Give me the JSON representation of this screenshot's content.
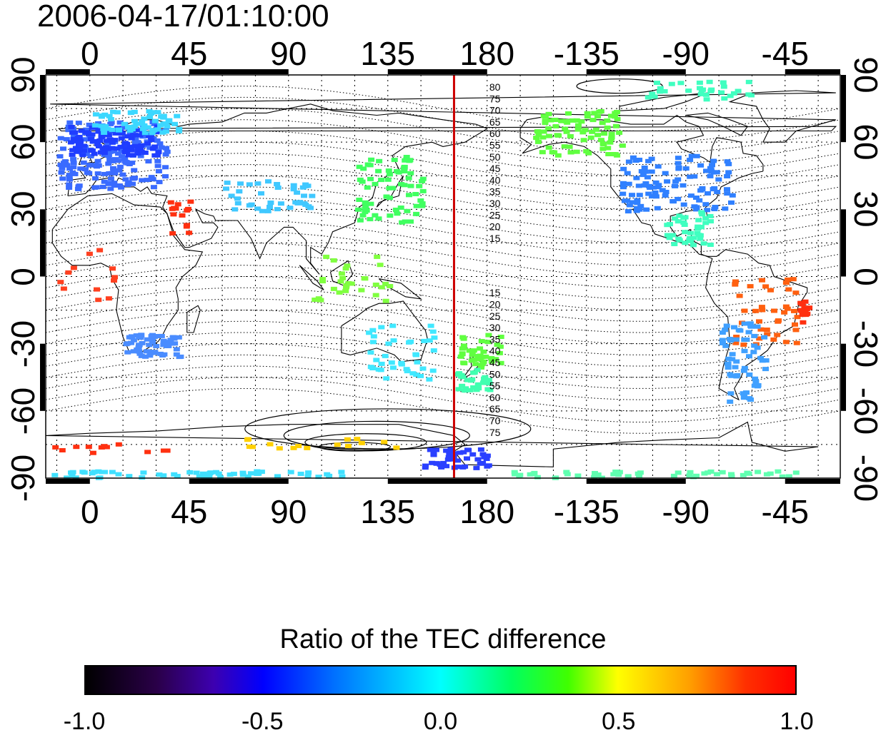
{
  "title": "2006-04-17/01:10:00",
  "map": {
    "projection": "equirectangular",
    "longitude_range": [
      -20,
      340
    ],
    "latitude_range": [
      -90,
      90
    ],
    "x_ticks": [
      "0",
      "45",
      "90",
      "135",
      "180",
      "-135",
      "-90",
      "-45"
    ],
    "y_ticks_left": [
      "90",
      "60",
      "30",
      "0",
      "-30",
      "-60",
      "-90"
    ],
    "y_ticks_right": [
      "90",
      "60",
      "30",
      "0",
      "-30",
      "-60",
      "-90"
    ],
    "grid": "dotted, every 15 degrees",
    "marker_line_longitude": 165,
    "marker_line_color": "#cc0000",
    "contour_labels_north": [
      "80",
      "75",
      "70",
      "65",
      "60",
      "55",
      "50",
      "45",
      "40",
      "35",
      "30",
      "25",
      "20",
      "15"
    ],
    "contour_labels_south": [
      "15",
      "20",
      "25",
      "30",
      "35",
      "40",
      "45",
      "50",
      "55",
      "60",
      "65",
      "70",
      "75"
    ]
  },
  "colorbar": {
    "title": "Ratio of the TEC difference",
    "ticks": [
      "-1.0",
      "-0.5",
      "0.0",
      "0.5",
      "1.0"
    ],
    "range": [
      -1.0,
      1.0
    ],
    "colors": [
      "#000000",
      "#3d00b0",
      "#0000ff",
      "#00ffff",
      "#00ff60",
      "#ffff00",
      "#ff0000"
    ]
  }
}
